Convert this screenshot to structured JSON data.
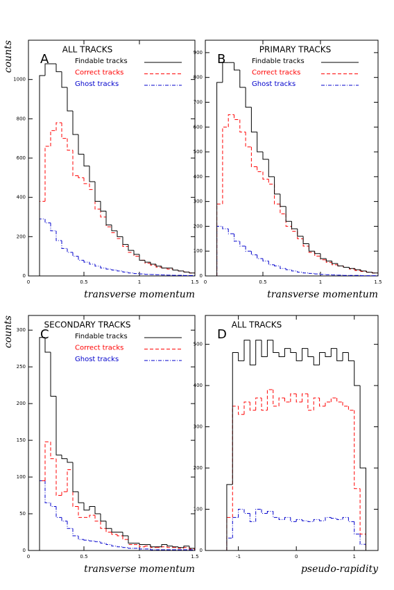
{
  "chart_data": [
    {
      "type": "histogram",
      "label": "A",
      "title": "ALL TRACKS",
      "xlabel": "transverse momentum",
      "ylabel": "counts",
      "bins": [
        0.1,
        0.15,
        0.2,
        0.25,
        0.3,
        0.35,
        0.4,
        0.45,
        0.5,
        0.55,
        0.6,
        0.65,
        0.7,
        0.75,
        0.8,
        0.85,
        0.9,
        0.95,
        1.0,
        1.05,
        1.1,
        1.15,
        1.2,
        1.25,
        1.3,
        1.35,
        1.4,
        1.45,
        1.5
      ],
      "series": [
        {
          "name": "Findable tracks",
          "color": "#000000",
          "line_style": "solid",
          "values": [
            1020,
            1080,
            1080,
            1040,
            960,
            840,
            720,
            620,
            560,
            480,
            380,
            330,
            260,
            230,
            200,
            160,
            130,
            110,
            80,
            70,
            60,
            50,
            40,
            40,
            30,
            25,
            20,
            15
          ]
        },
        {
          "name": "Correct tracks",
          "color": "#ff0000",
          "line_style": "dashed",
          "values": [
            380,
            660,
            740,
            780,
            700,
            640,
            510,
            500,
            470,
            440,
            340,
            300,
            250,
            220,
            190,
            150,
            120,
            100,
            80,
            65,
            55,
            45,
            40,
            35,
            30,
            25,
            20,
            15
          ]
        },
        {
          "name": "Ghost tracks",
          "color": "#0000cc",
          "line_style": "dashdot",
          "values": [
            290,
            270,
            230,
            180,
            140,
            120,
            100,
            80,
            70,
            60,
            50,
            40,
            35,
            30,
            25,
            20,
            15,
            12,
            10,
            8,
            7,
            6,
            5,
            4,
            3,
            3,
            2,
            2
          ]
        }
      ],
      "xlim": [
        0,
        1.5
      ],
      "ylim": [
        0,
        1200
      ],
      "xticks": [
        0,
        0.5,
        1,
        1.5
      ],
      "yticks": [
        0,
        200,
        400,
        600,
        800,
        1000
      ]
    },
    {
      "type": "histogram",
      "label": "B",
      "title": "PRIMARY TRACKS",
      "xlabel": "transverse momentum",
      "bins": [
        0.1,
        0.15,
        0.2,
        0.25,
        0.3,
        0.35,
        0.4,
        0.45,
        0.5,
        0.55,
        0.6,
        0.65,
        0.7,
        0.75,
        0.8,
        0.85,
        0.9,
        0.95,
        1.0,
        1.05,
        1.1,
        1.15,
        1.2,
        1.25,
        1.3,
        1.35,
        1.4,
        1.45,
        1.5
      ],
      "series": [
        {
          "name": "Findable tracks",
          "color": "#000000",
          "line_style": "solid",
          "values": [
            780,
            860,
            860,
            830,
            760,
            680,
            580,
            500,
            470,
            400,
            330,
            280,
            220,
            190,
            160,
            130,
            100,
            90,
            70,
            60,
            50,
            40,
            35,
            30,
            25,
            20,
            15,
            12
          ]
        },
        {
          "name": "Correct tracks",
          "color": "#ff0000",
          "line_style": "dashed",
          "values": [
            290,
            600,
            650,
            630,
            580,
            520,
            440,
            420,
            390,
            370,
            290,
            250,
            200,
            180,
            150,
            120,
            95,
            80,
            65,
            55,
            45,
            40,
            35,
            28,
            22,
            18,
            15,
            12
          ]
        },
        {
          "name": "Ghost tracks",
          "color": "#0000cc",
          "line_style": "dashdot",
          "values": [
            200,
            190,
            170,
            140,
            120,
            100,
            85,
            70,
            60,
            45,
            40,
            30,
            25,
            20,
            15,
            12,
            10,
            8,
            6,
            5,
            4,
            3,
            2,
            2,
            2,
            1,
            1,
            1
          ]
        }
      ],
      "xlim": [
        0,
        1.5
      ],
      "ylim": [
        0,
        950
      ],
      "xticks": [
        0,
        0.5,
        1,
        1.5
      ],
      "yticks": [
        0,
        100,
        200,
        300,
        400,
        500,
        600,
        700,
        800,
        900
      ]
    },
    {
      "type": "histogram",
      "label": "C",
      "title": "SECONDARY TRACKS",
      "xlabel": "transverse momentum",
      "ylabel": "counts",
      "bins": [
        0.1,
        0.15,
        0.2,
        0.25,
        0.3,
        0.35,
        0.4,
        0.45,
        0.5,
        0.55,
        0.6,
        0.65,
        0.7,
        0.75,
        0.8,
        0.85,
        0.9,
        0.95,
        1.0,
        1.05,
        1.1,
        1.15,
        1.2,
        1.25,
        1.3,
        1.35,
        1.4,
        1.45,
        1.5
      ],
      "series": [
        {
          "name": "Findable tracks",
          "color": "#000000",
          "line_style": "solid",
          "values": [
            290,
            270,
            210,
            130,
            125,
            120,
            80,
            65,
            55,
            60,
            50,
            40,
            30,
            25,
            25,
            20,
            10,
            10,
            8,
            8,
            5,
            5,
            8,
            6,
            5,
            4,
            6,
            3
          ]
        },
        {
          "name": "Correct tracks",
          "color": "#ff0000",
          "line_style": "dashed",
          "values": [
            95,
            148,
            125,
            75,
            80,
            110,
            60,
            45,
            45,
            48,
            40,
            30,
            25,
            22,
            20,
            15,
            8,
            8,
            5,
            6,
            4,
            4,
            5,
            4,
            4,
            3,
            4,
            2
          ]
        },
        {
          "name": "Ghost tracks",
          "color": "#0000cc",
          "line_style": "dashdot",
          "values": [
            95,
            65,
            60,
            45,
            40,
            30,
            20,
            15,
            14,
            13,
            12,
            10,
            8,
            6,
            5,
            4,
            3,
            3,
            2,
            2,
            1,
            1,
            1,
            1,
            1,
            1,
            1,
            1
          ]
        }
      ],
      "xlim": [
        0,
        1.5
      ],
      "ylim": [
        0,
        320
      ],
      "xticks": [
        0,
        0.5,
        1,
        1.5
      ],
      "yticks": [
        0,
        50,
        100,
        150,
        200,
        250,
        300
      ]
    },
    {
      "type": "histogram",
      "label": "D",
      "title": "ALL TRACKS",
      "xlabel": "pseudo-rapidity",
      "bins": [
        -1.2,
        -1.1,
        -1.0,
        -0.9,
        -0.8,
        -0.7,
        -0.6,
        -0.5,
        -0.4,
        -0.3,
        -0.2,
        -0.1,
        0,
        0.1,
        0.2,
        0.3,
        0.4,
        0.5,
        0.6,
        0.7,
        0.8,
        0.9,
        1.0,
        1.1,
        1.2
      ],
      "series": [
        {
          "color": "#000000",
          "line_style": "solid",
          "values": [
            160,
            480,
            460,
            510,
            450,
            510,
            470,
            510,
            480,
            470,
            490,
            480,
            460,
            490,
            470,
            450,
            480,
            470,
            490,
            460,
            480,
            460,
            400,
            200
          ]
        },
        {
          "color": "#ff0000",
          "line_style": "dashed",
          "values": [
            80,
            350,
            330,
            360,
            340,
            370,
            340,
            390,
            350,
            370,
            360,
            380,
            360,
            380,
            340,
            370,
            350,
            360,
            370,
            360,
            350,
            340,
            150,
            40
          ]
        },
        {
          "color": "#0000cc",
          "line_style": "dashdot",
          "values": [
            30,
            80,
            100,
            90,
            70,
            100,
            90,
            95,
            80,
            75,
            80,
            70,
            75,
            72,
            70,
            75,
            72,
            80,
            78,
            75,
            80,
            70,
            40,
            15
          ]
        }
      ],
      "xlim": [
        -1.57,
        1.41
      ],
      "ylim": [
        0,
        570
      ],
      "xticks": [
        -1,
        0,
        1
      ],
      "yticks": [
        0,
        100,
        200,
        300,
        400,
        500
      ]
    }
  ]
}
